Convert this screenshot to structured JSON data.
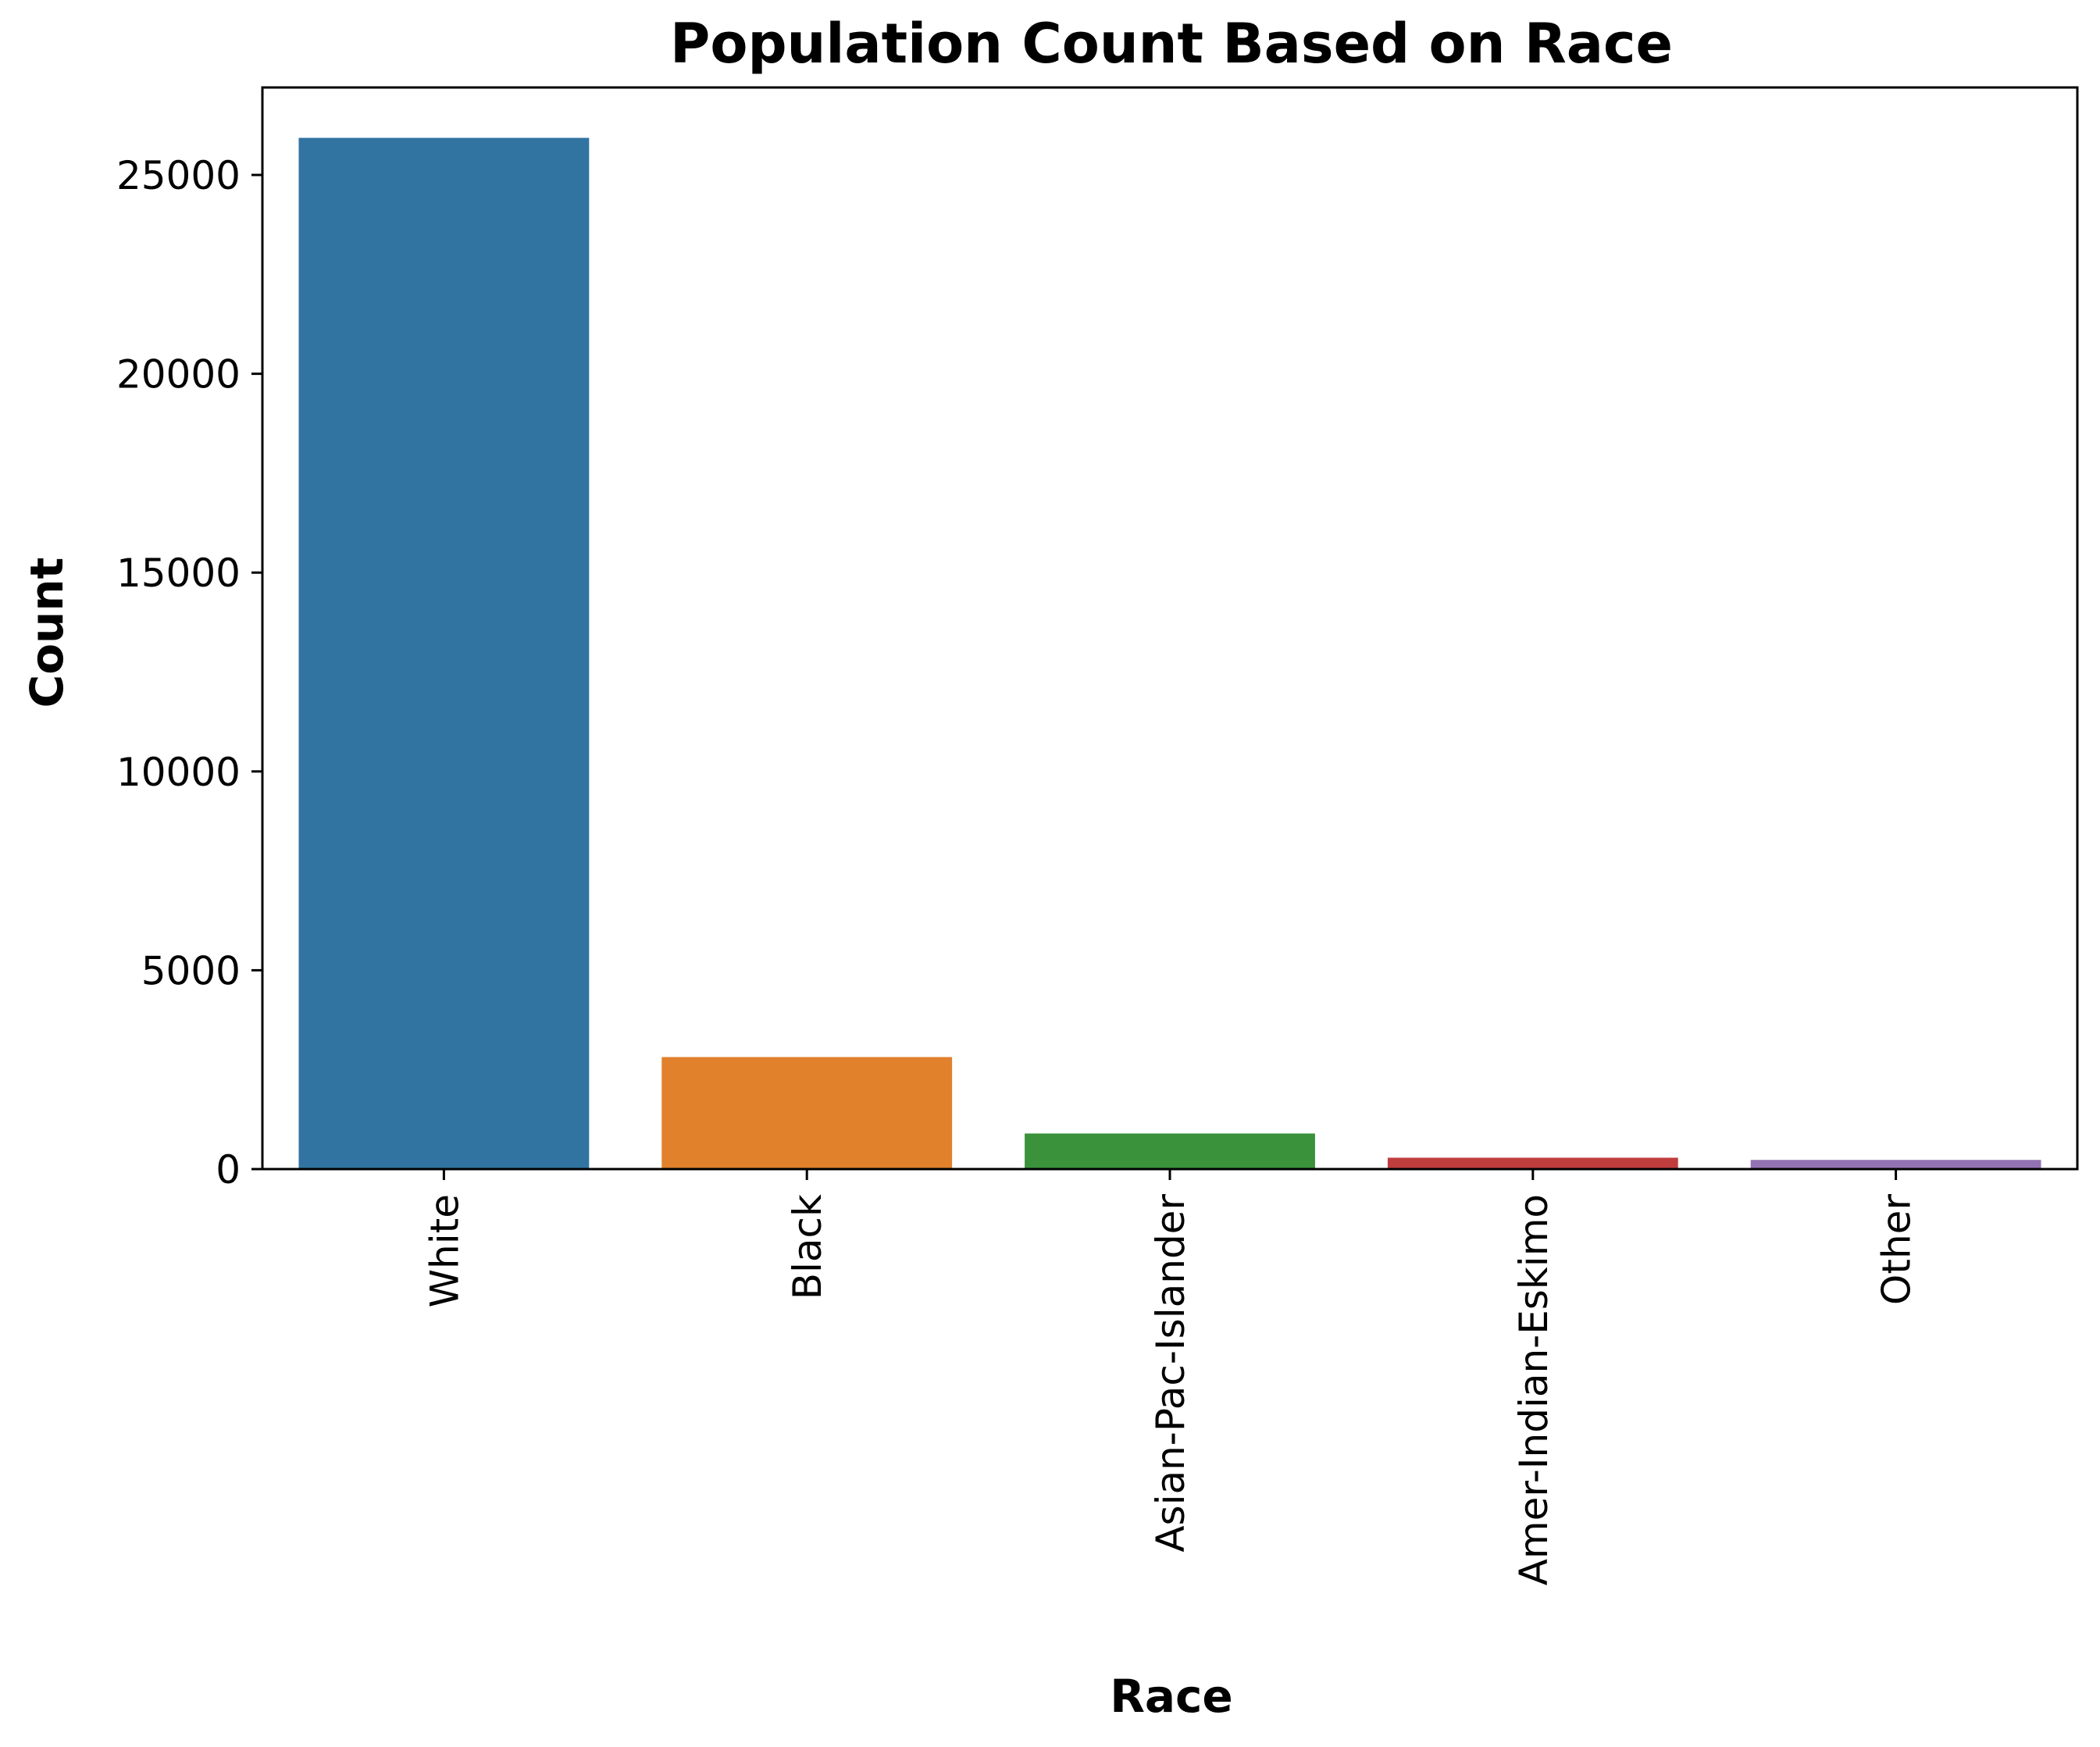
{
  "chart_data": {
    "type": "bar",
    "title": "Population Count Based on Race",
    "xlabel": "Race",
    "ylabel": "Count",
    "categories": [
      "White",
      "Black",
      "Asian-Pac-Islander",
      "Amer-Indian-Eskimo",
      "Other"
    ],
    "values": [
      25933,
      2817,
      895,
      286,
      231
    ],
    "colors": [
      "#3274a1",
      "#e1812c",
      "#3a923a",
      "#c03d3e",
      "#9372b2"
    ],
    "ylim": [
      0,
      27200
    ],
    "yticks": [
      0,
      5000,
      10000,
      15000,
      20000,
      25000
    ],
    "ytick_labels": [
      "0",
      "5000",
      "10000",
      "15000",
      "20000",
      "25000"
    ],
    "grid": false,
    "legend": "none"
  }
}
